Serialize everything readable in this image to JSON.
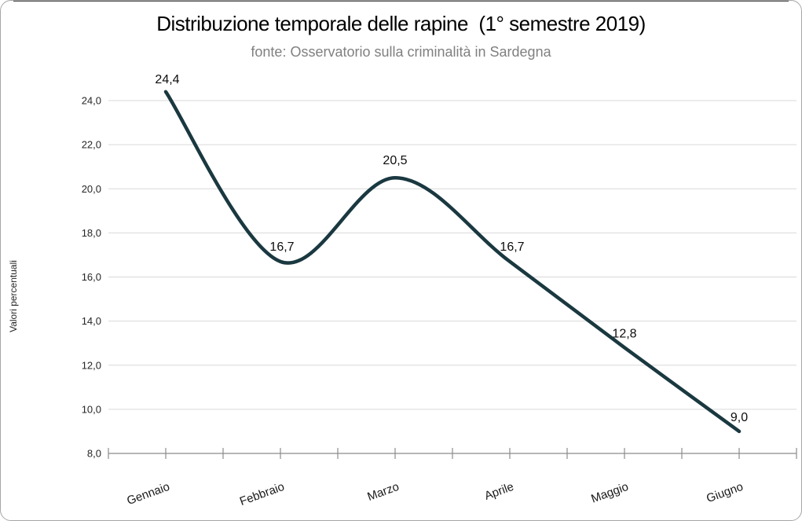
{
  "window": {
    "background": "#ffffff",
    "border_color": "#a6a6a6"
  },
  "chart_data": {
    "type": "line",
    "title": "Distribuzione temporale delle rapine  (1° semestre 2019)",
    "subtitle": "fonte: Osservatorio sulla criminalità in Sardegna",
    "ylabel": "Valori percentuali",
    "xlabel": "",
    "categories": [
      "Gennaio",
      "Febbraio",
      "Marzo",
      "Aprile",
      "Maggio",
      "Giugno"
    ],
    "values": [
      24.4,
      16.7,
      20.5,
      16.7,
      12.8,
      9.0
    ],
    "point_labels": [
      "24,4",
      "16,7",
      "20,5",
      "16,7",
      "12,8",
      "9,0"
    ],
    "y_ticks": [
      8,
      10,
      12,
      14,
      16,
      18,
      20,
      22,
      24
    ],
    "y_tick_labels": [
      "8,0",
      "10,0",
      "12,0",
      "14,0",
      "16,0",
      "18,0",
      "20,0",
      "22,0",
      "24,0"
    ],
    "ylim": [
      8,
      24
    ],
    "grid": true,
    "legend": false,
    "smooth": true,
    "line_color": "#1A3840",
    "gridline_color": "#D9D9D9",
    "axis_color": "#8C8C8C",
    "tick_label_color": "#262626",
    "data_label_color": "#0d0d0d",
    "title_color": "#000000",
    "subtitle_color": "#808080"
  }
}
